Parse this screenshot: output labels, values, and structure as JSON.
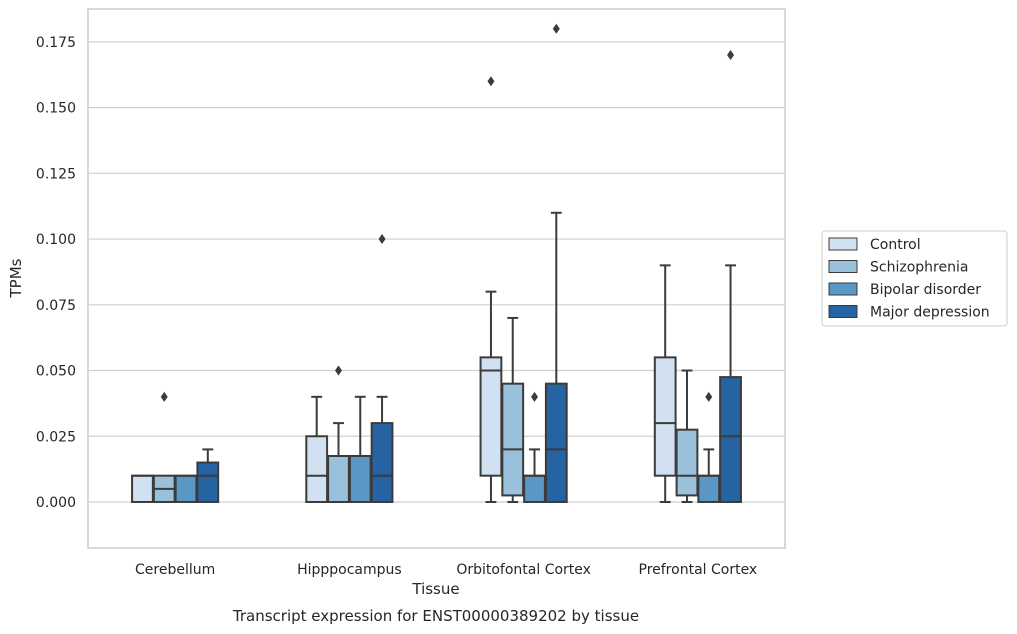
{
  "chart_data": {
    "type": "box",
    "xlabel": "Tissue",
    "ylabel": "TPMs",
    "caption": "Transcript expression for ENST00000389202 by tissue",
    "ylim": [
      -0.0175,
      0.1875
    ],
    "yticks": [
      0.0,
      0.025,
      0.05,
      0.075,
      0.1,
      0.125,
      0.15,
      0.175
    ],
    "ytick_labels": [
      "0.000",
      "0.025",
      "0.050",
      "0.075",
      "0.100",
      "0.125",
      "0.150",
      "0.175"
    ],
    "grid": "horizontal",
    "legend_position": "right",
    "categories": [
      "Cerebellum",
      "Hipppocampus",
      "Orbitofontal Cortex",
      "Prefrontal Cortex"
    ],
    "series": [
      {
        "name": "Control",
        "color": "#d1e1f1",
        "boxes": [
          {
            "whislo": 0.0,
            "q1": 0.0,
            "med": 0.01,
            "q3": 0.01,
            "whishi": 0.01,
            "fliers": []
          },
          {
            "whislo": 0.0,
            "q1": 0.0,
            "med": 0.01,
            "q3": 0.025,
            "whishi": 0.04,
            "fliers": []
          },
          {
            "whislo": 0.0,
            "q1": 0.01,
            "med": 0.05,
            "q3": 0.055,
            "whishi": 0.08,
            "fliers": [
              0.16
            ]
          },
          {
            "whislo": 0.0,
            "q1": 0.01,
            "med": 0.03,
            "q3": 0.055,
            "whishi": 0.09,
            "fliers": []
          }
        ]
      },
      {
        "name": "Schizophrenia",
        "color": "#9ac1db",
        "boxes": [
          {
            "whislo": 0.0,
            "q1": 0.0,
            "med": 0.005,
            "q3": 0.01,
            "whishi": 0.01,
            "fliers": [
              0.04
            ]
          },
          {
            "whislo": 0.0,
            "q1": 0.0,
            "med": 0.0175,
            "q3": 0.0175,
            "whishi": 0.03,
            "fliers": [
              0.05
            ]
          },
          {
            "whislo": 0.0,
            "q1": 0.0025,
            "med": 0.02,
            "q3": 0.045,
            "whishi": 0.07,
            "fliers": []
          },
          {
            "whislo": 0.0,
            "q1": 0.0025,
            "med": 0.01,
            "q3": 0.0275,
            "whishi": 0.05,
            "fliers": []
          }
        ]
      },
      {
        "name": "Bipolar disorder",
        "color": "#5a97c4",
        "boxes": [
          {
            "whislo": 0.0,
            "q1": 0.0,
            "med": 0.01,
            "q3": 0.01,
            "whishi": 0.01,
            "fliers": []
          },
          {
            "whislo": 0.0,
            "q1": 0.0,
            "med": 0.0175,
            "q3": 0.0175,
            "whishi": 0.04,
            "fliers": []
          },
          {
            "whislo": 0.0,
            "q1": 0.0,
            "med": 0.01,
            "q3": 0.01,
            "whishi": 0.02,
            "fliers": [
              0.04
            ]
          },
          {
            "whislo": 0.0,
            "q1": 0.0,
            "med": 0.01,
            "q3": 0.01,
            "whishi": 0.02,
            "fliers": [
              0.04
            ]
          }
        ]
      },
      {
        "name": "Major depression",
        "color": "#2563a3",
        "boxes": [
          {
            "whislo": 0.0,
            "q1": 0.0,
            "med": 0.01,
            "q3": 0.015,
            "whishi": 0.02,
            "fliers": []
          },
          {
            "whislo": 0.0,
            "q1": 0.0,
            "med": 0.01,
            "q3": 0.03,
            "whishi": 0.04,
            "fliers": [
              0.1
            ]
          },
          {
            "whislo": 0.0,
            "q1": 0.0,
            "med": 0.02,
            "q3": 0.045,
            "whishi": 0.11,
            "fliers": [
              0.18
            ]
          },
          {
            "whislo": 0.0,
            "q1": 0.0,
            "med": 0.025,
            "q3": 0.0475,
            "whishi": 0.09,
            "fliers": [
              0.17
            ]
          }
        ]
      }
    ]
  }
}
